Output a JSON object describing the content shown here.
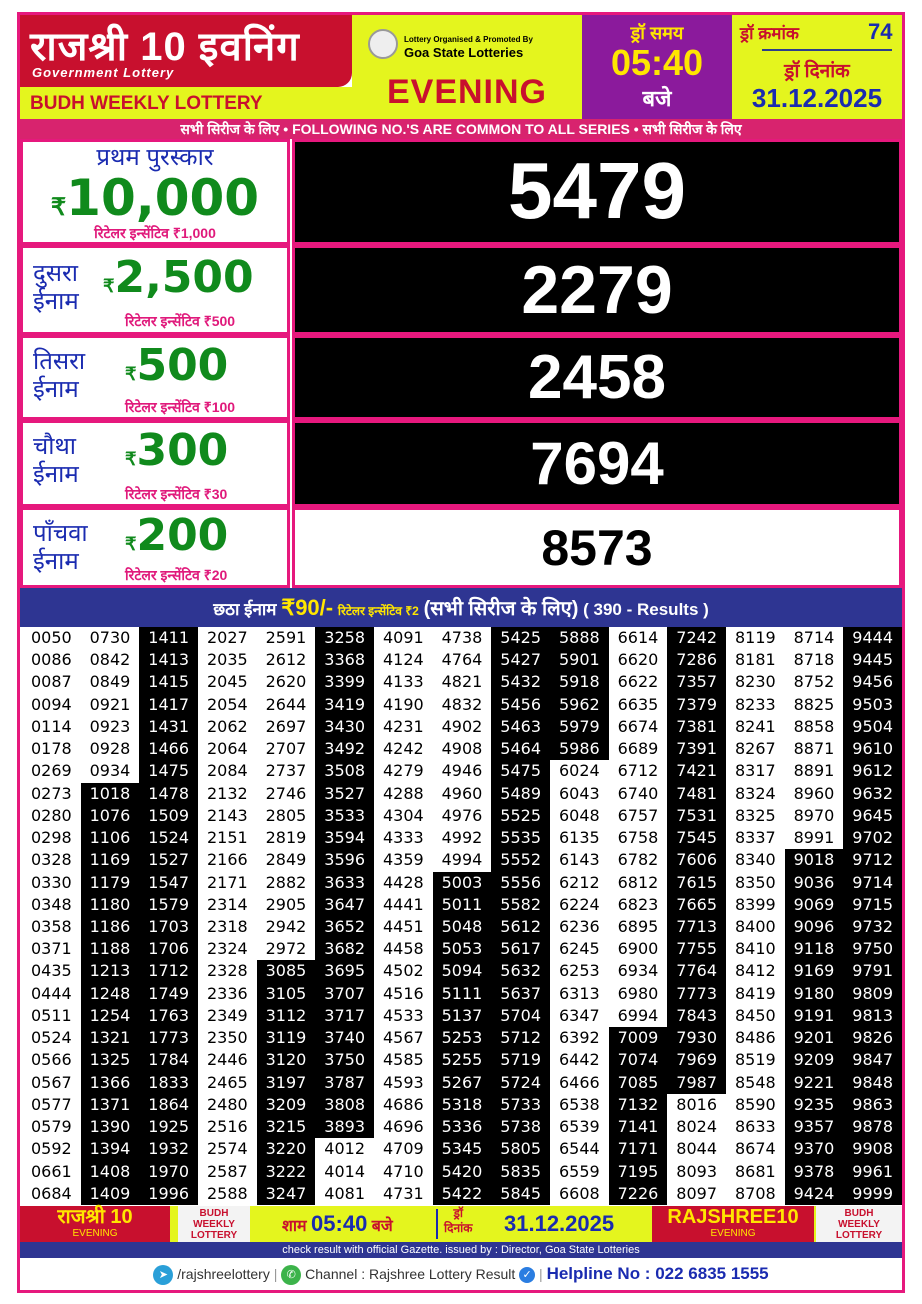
{
  "header": {
    "title_hi": "राजश्री 10 इवनिंग",
    "subtitle": "Government Lottery",
    "weekly": "BUDH WEEKLY LOTTERY",
    "organised_by": "Lottery Organised & Promoted By",
    "organiser": "Goa State Lotteries",
    "session": "EVENING",
    "draw_time_label": "ड्रॉ समय",
    "draw_time": "05:40",
    "baje": "बजे",
    "draw_no_label": "ड्रॉ क्रमांक",
    "draw_no": "74",
    "draw_date_label": "ड्रॉ दिनांक",
    "draw_date": "31.12.2025"
  },
  "banner": "सभी सिरीज के लिए  •  FOLLOWING NO.'S ARE COMMON TO ALL SERIES  • सभी सिरीज के लिए",
  "prizes": [
    {
      "label": "प्रथम पुरस्कार",
      "amount": "10,000",
      "incentive": "रिटेलर इन्सेंटिव ₹1,000",
      "number": "5479"
    },
    {
      "label1": "दुसरा",
      "label2": "ईनाम",
      "amount": "2,500",
      "incentive": "रिटेलर इन्सेंटिव ₹500",
      "number": "2279"
    },
    {
      "label1": "तिसरा",
      "label2": "ईनाम",
      "amount": "500",
      "incentive": "रिटेलर इन्सेंटिव ₹100",
      "number": "2458"
    },
    {
      "label1": "चौथा",
      "label2": "ईनाम",
      "amount": "300",
      "incentive": "रिटेलर इन्सेंटिव ₹30",
      "number": "7694"
    },
    {
      "label1": "पाँचवा",
      "label2": "ईनाम",
      "amount": "200",
      "incentive": "रिटेलर इन्सेंटिव ₹20",
      "number": "8573"
    }
  ],
  "rupee": "₹",
  "sixth": {
    "label": "छठा ईनाम",
    "amount": "₹90/-",
    "incentive": "रिटेलर इन्सेंटिव ₹2",
    "series": "(सभी सिरीज के लिए)",
    "count": "( 390 - Results )"
  },
  "results": [
    [
      "0050",
      "0086",
      "0087",
      "0094",
      "0114",
      "0178",
      "0269",
      "0273",
      "0280",
      "0298",
      "0328",
      "0330",
      "0348",
      "0358",
      "0371",
      "0435",
      "0444",
      "0511",
      "0524",
      "0566",
      "0567",
      "0577",
      "0579",
      "0592",
      "0661",
      "0684"
    ],
    [
      "0730",
      "0842",
      "0849",
      "0921",
      "0923",
      "0928",
      "0934",
      "1018",
      "1076",
      "1106",
      "1169",
      "1179",
      "1180",
      "1186",
      "1188",
      "1213",
      "1248",
      "1254",
      "1321",
      "1325",
      "1366",
      "1371",
      "1390",
      "1394",
      "1408",
      "1409"
    ],
    [
      "1411",
      "1413",
      "1415",
      "1417",
      "1431",
      "1466",
      "1475",
      "1478",
      "1509",
      "1524",
      "1527",
      "1547",
      "1579",
      "1703",
      "1706",
      "1712",
      "1749",
      "1763",
      "1773",
      "1784",
      "1833",
      "1864",
      "1925",
      "1932",
      "1970",
      "1996"
    ],
    [
      "2027",
      "2035",
      "2045",
      "2054",
      "2062",
      "2064",
      "2084",
      "2132",
      "2143",
      "2151",
      "2166",
      "2171",
      "2314",
      "2318",
      "2324",
      "2328",
      "2336",
      "2349",
      "2350",
      "2446",
      "2465",
      "2480",
      "2516",
      "2574",
      "2587",
      "2588"
    ],
    [
      "2591",
      "2612",
      "2620",
      "2644",
      "2697",
      "2707",
      "2737",
      "2746",
      "2805",
      "2819",
      "2849",
      "2882",
      "2905",
      "2942",
      "2972",
      "3085",
      "3105",
      "3112",
      "3119",
      "3120",
      "3197",
      "3209",
      "3215",
      "3220",
      "3222",
      "3247"
    ],
    [
      "3258",
      "3368",
      "3399",
      "3419",
      "3430",
      "3492",
      "3508",
      "3527",
      "3533",
      "3594",
      "3596",
      "3633",
      "3647",
      "3652",
      "3682",
      "3695",
      "3707",
      "3717",
      "3740",
      "3750",
      "3787",
      "3808",
      "3893",
      "4012",
      "4014",
      "4081"
    ],
    [
      "4091",
      "4124",
      "4133",
      "4190",
      "4231",
      "4242",
      "4279",
      "4288",
      "4304",
      "4333",
      "4359",
      "4428",
      "4441",
      "4451",
      "4458",
      "4502",
      "4516",
      "4533",
      "4567",
      "4585",
      "4593",
      "4686",
      "4696",
      "4709",
      "4710",
      "4731"
    ],
    [
      "4738",
      "4764",
      "4821",
      "4832",
      "4902",
      "4908",
      "4946",
      "4960",
      "4976",
      "4992",
      "4994",
      "5003",
      "5011",
      "5048",
      "5053",
      "5094",
      "5111",
      "5137",
      "5253",
      "5255",
      "5267",
      "5318",
      "5336",
      "5345",
      "5420",
      "5422"
    ],
    [
      "5425",
      "5427",
      "5432",
      "5456",
      "5463",
      "5464",
      "5475",
      "5489",
      "5525",
      "5535",
      "5552",
      "5556",
      "5582",
      "5612",
      "5617",
      "5632",
      "5637",
      "5704",
      "5712",
      "5719",
      "5724",
      "5733",
      "5738",
      "5805",
      "5835",
      "5845"
    ],
    [
      "5888",
      "5901",
      "5918",
      "5962",
      "5979",
      "5986",
      "6024",
      "6043",
      "6048",
      "6135",
      "6143",
      "6212",
      "6224",
      "6236",
      "6245",
      "6253",
      "6313",
      "6347",
      "6392",
      "6442",
      "6466",
      "6538",
      "6539",
      "6544",
      "6559",
      "6608"
    ],
    [
      "6614",
      "6620",
      "6622",
      "6635",
      "6674",
      "6689",
      "6712",
      "6740",
      "6757",
      "6758",
      "6782",
      "6812",
      "6823",
      "6895",
      "6900",
      "6934",
      "6980",
      "6994",
      "7009",
      "7074",
      "7085",
      "7132",
      "7141",
      "7171",
      "7195",
      "7226"
    ],
    [
      "7242",
      "7286",
      "7357",
      "7379",
      "7381",
      "7391",
      "7421",
      "7481",
      "7531",
      "7545",
      "7606",
      "7615",
      "7665",
      "7713",
      "7755",
      "7764",
      "7773",
      "7843",
      "7930",
      "7969",
      "7987",
      "8016",
      "8024",
      "8044",
      "8093",
      "8097"
    ],
    [
      "8119",
      "8181",
      "8230",
      "8233",
      "8241",
      "8267",
      "8317",
      "8324",
      "8325",
      "8337",
      "8340",
      "8350",
      "8399",
      "8400",
      "8410",
      "8412",
      "8419",
      "8450",
      "8486",
      "8519",
      "8548",
      "8590",
      "8633",
      "8674",
      "8681",
      "8708"
    ],
    [
      "8714",
      "8718",
      "8752",
      "8825",
      "8858",
      "8871",
      "8891",
      "8960",
      "8970",
      "8991",
      "9018",
      "9036",
      "9069",
      "9096",
      "9118",
      "9169",
      "9180",
      "9191",
      "9201",
      "9209",
      "9221",
      "9235",
      "9357",
      "9370",
      "9378",
      "9424"
    ],
    [
      "9444",
      "9445",
      "9456",
      "9503",
      "9504",
      "9610",
      "9612",
      "9632",
      "9645",
      "9702",
      "9712",
      "9714",
      "9715",
      "9732",
      "9750",
      "9791",
      "9809",
      "9813",
      "9826",
      "9847",
      "9848",
      "9863",
      "9878",
      "9908",
      "9961",
      "9999"
    ]
  ],
  "footer": {
    "brand_hi": "राजश्री 10",
    "evening": "EVENING",
    "budh": "BUDH",
    "weekly": "WEEKLY",
    "lottery": "LOTTERY",
    "sham": "शाम",
    "time": "05:40",
    "baje": "बजे",
    "dri": "ड्रॉ",
    "dinank": "दिनांक",
    "date": "31.12.2025",
    "brand_en": "RAJSHREE10",
    "gazette": "check result with official Gazette. issued by : Director, Goa State Lotteries",
    "telegram": "/rajshreelottery",
    "channel": "Channel : Rajshree Lottery Result",
    "helpline": "Helpline No : 022 6835 1555"
  },
  "colors": {
    "pink": "#e6187d",
    "red": "#c8102e",
    "yellow": "#e4f51e",
    "purple": "#8b1a9c",
    "navy": "#2e3592",
    "green": "#108a1c"
  }
}
